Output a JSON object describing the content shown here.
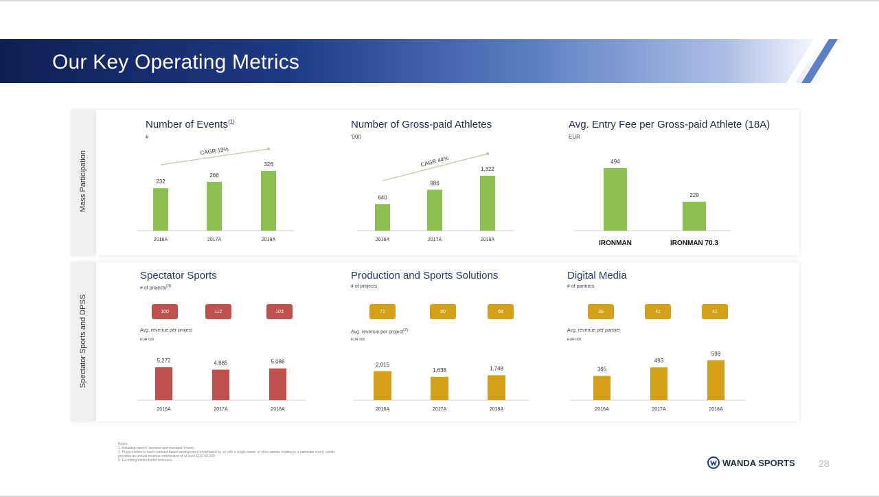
{
  "page": {
    "title": "Our Key Operating Metrics",
    "page_number": "28",
    "brand": "WANDA SPORTS"
  },
  "sections": {
    "top": "Mass Participation",
    "bottom": "Spectator Sports and DPSS"
  },
  "charts": {
    "events": {
      "title": "Number of Events",
      "title_sup": "(1)",
      "unit": "#",
      "cagr": "CAGR 19%",
      "categories": [
        "2016A",
        "2017A",
        "2018A"
      ],
      "labels": [
        "232",
        "266",
        "326"
      ],
      "color": "#8cc152"
    },
    "athletes": {
      "title": "Number of Gross-paid Athletes",
      "unit": "'000",
      "cagr": "CAGR 44%",
      "categories": [
        "2016A",
        "2017A",
        "2018A"
      ],
      "labels": [
        "640",
        "986",
        "1,322"
      ],
      "color": "#8cc152"
    },
    "fee": {
      "title": "Avg. Entry Fee per Gross-paid Athlete (18A)",
      "unit": "EUR",
      "categories": [
        "IRONMAN",
        "IRONMAN 70.3"
      ],
      "labels": [
        "494",
        "229"
      ],
      "color": "#8cc152"
    },
    "spectator": {
      "title": "Spectator Sports",
      "count_label": "# of projects",
      "count_sup": "(3)",
      "pills": [
        "100",
        "112",
        "103"
      ],
      "rev_label": "Avg. revenue per project",
      "rev_unit": "EUR 000",
      "categories": [
        "2016A",
        "2017A",
        "2018A"
      ],
      "labels": [
        "5,272",
        "4,885",
        "5,086"
      ],
      "color": "#c0504d"
    },
    "production": {
      "title": "Production and Sports Solutions",
      "count_label": "# of projects",
      "pills": [
        "71",
        "60",
        "68"
      ],
      "rev_label": "Avg. revenue per project",
      "rev_sup": "(2)",
      "rev_unit": "EUR 000",
      "categories": [
        "2016A",
        "2017A",
        "2018A"
      ],
      "labels": [
        "2,015",
        "1,638",
        "1,748"
      ],
      "color": "#d4a017"
    },
    "digital": {
      "title": "Digital Media",
      "count_label": "# of partners",
      "pills": [
        "35",
        "41",
        "41"
      ],
      "rev_label": "Avg. revenue per partner",
      "rev_unit": "EUR 000",
      "categories": [
        "2016A",
        "2017A",
        "2018A"
      ],
      "labels": [
        "365",
        "493",
        "598"
      ],
      "color": "#d4a017"
    }
  },
  "chart_data": [
    {
      "type": "bar",
      "title": "Number of Events",
      "ylabel": "#",
      "categories": [
        "2016A",
        "2017A",
        "2018A"
      ],
      "values": [
        232,
        266,
        326
      ],
      "annotation": "CAGR 19%"
    },
    {
      "type": "bar",
      "title": "Number of Gross-paid Athletes",
      "ylabel": "'000",
      "categories": [
        "2016A",
        "2017A",
        "2018A"
      ],
      "values": [
        640,
        986,
        1322
      ],
      "annotation": "CAGR 44%"
    },
    {
      "type": "bar",
      "title": "Avg. Entry Fee per Gross-paid Athlete (18A)",
      "ylabel": "EUR",
      "categories": [
        "IRONMAN",
        "IRONMAN 70.3"
      ],
      "values": [
        494,
        229
      ]
    },
    {
      "type": "bar",
      "title": "Spectator Sports",
      "ylabel": "EUR 000",
      "categories": [
        "2016A",
        "2017A",
        "2018A"
      ],
      "values": [
        5272,
        4885,
        5086
      ]
    },
    {
      "type": "bar",
      "title": "Production and Sports Solutions",
      "ylabel": "EUR 000",
      "categories": [
        "2016A",
        "2017A",
        "2018A"
      ],
      "values": [
        2015,
        1638,
        1748
      ]
    },
    {
      "type": "bar",
      "title": "Digital Media",
      "ylabel": "EUR 000",
      "categories": [
        "2016A",
        "2017A",
        "2018A"
      ],
      "values": [
        365,
        493,
        598
      ]
    }
  ],
  "notes": [
    "Notes:",
    "1. Including owned, licensed and managed events",
    "2. Project refers to each contract-based arrangement undertaken by us with a single owner or other parties relating to a particular event, which",
    "   provides an annual revenue contribution of at least EUR 50,000",
    "3. Excluding media barter revenues"
  ]
}
